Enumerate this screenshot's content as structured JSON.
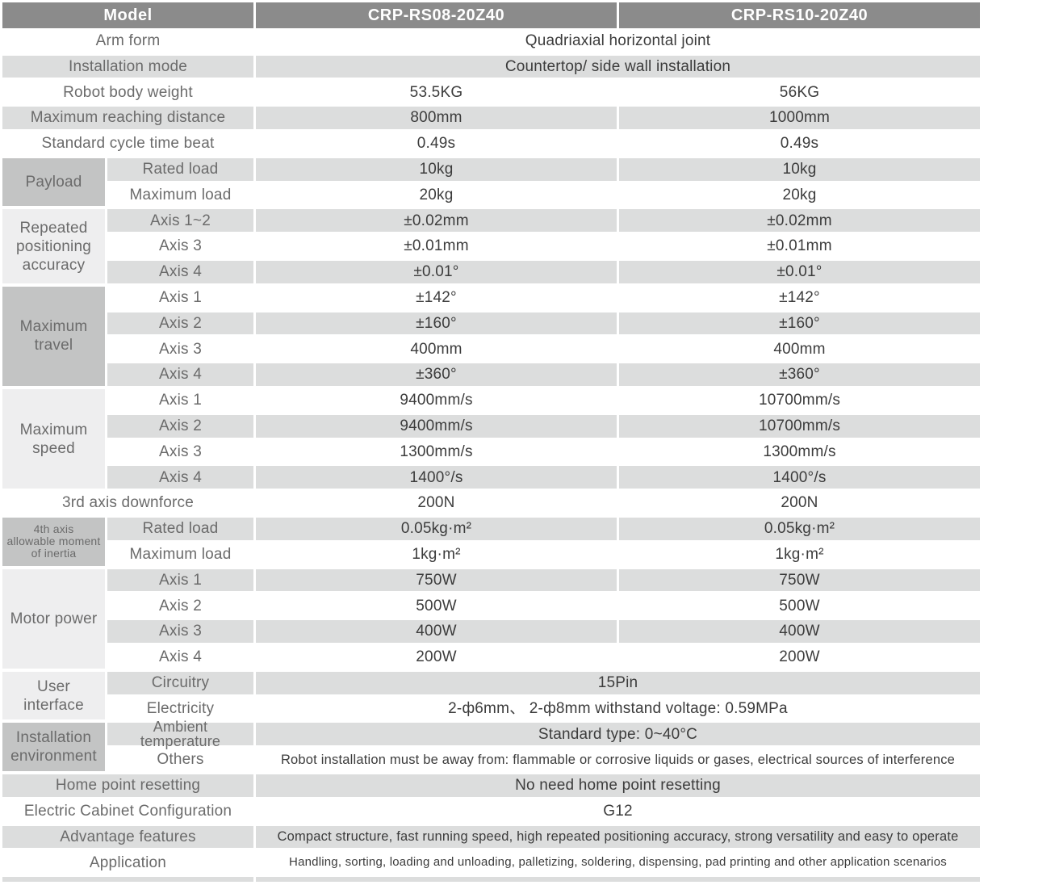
{
  "header": {
    "model_label": "Model",
    "models": [
      "CRP-RS08-20Z40",
      "CRP-RS10-20Z40"
    ]
  },
  "colors": {
    "header": "#8b8b8b",
    "stripe": "#dcdddd",
    "catdark": "#c3c4c4",
    "catlight": "#eeeeef",
    "label": "#6b6b6b",
    "value": "#3c3c3c"
  },
  "table": {
    "groups": [
      {
        "label": "Payload",
        "shade": "dark",
        "start": 5,
        "span": 2
      },
      {
        "label": "Repeated\npositioning\naccuracy",
        "shade": "light",
        "start": 7,
        "span": 3
      },
      {
        "label": "Maximum travel",
        "shade": "dark",
        "start": 10,
        "span": 4
      },
      {
        "label": "Maximum speed",
        "shade": "light",
        "start": 14,
        "span": 4
      },
      {
        "label": "4th axis\nallowable moment\nof inertia",
        "shade": "dark",
        "start": 19,
        "span": 2,
        "size": "sm"
      },
      {
        "label": "Motor power",
        "shade": "light",
        "start": 21,
        "span": 4
      },
      {
        "label": "User\ninterface",
        "shade": "light",
        "start": 25,
        "span": 2
      },
      {
        "label": "Installation\nenvironment",
        "shade": "dark",
        "start": 27,
        "span": 2
      }
    ],
    "rows": [
      {
        "label": "Arm form",
        "stripe": "w",
        "merged": "Quadriaxial horizontal joint"
      },
      {
        "label": "Installation mode",
        "stripe": "g",
        "merged": "Countertop/ side wall installation"
      },
      {
        "label": "Robot body weight",
        "stripe": "w",
        "values": [
          "53.5KG",
          "56KG"
        ]
      },
      {
        "label": "Maximum reaching distance",
        "stripe": "g",
        "values": [
          "800mm",
          "1000mm"
        ]
      },
      {
        "label": "Standard cycle time beat",
        "stripe": "w",
        "values": [
          "0.49s",
          "0.49s"
        ]
      },
      {
        "sub": "Rated load",
        "stripe": "g",
        "values": [
          "10kg",
          "10kg"
        ]
      },
      {
        "sub": "Maximum load",
        "stripe": "w",
        "values": [
          "20kg",
          "20kg"
        ]
      },
      {
        "sub": "Axis 1~2",
        "stripe": "g",
        "values": [
          "±0.02mm",
          "±0.02mm"
        ]
      },
      {
        "sub": "Axis 3",
        "stripe": "w",
        "values": [
          "±0.01mm",
          "±0.01mm"
        ]
      },
      {
        "sub": "Axis 4",
        "stripe": "g",
        "values": [
          "±0.01°",
          "±0.01°"
        ]
      },
      {
        "sub": "Axis 1",
        "stripe": "w",
        "values": [
          "±142°",
          "±142°"
        ]
      },
      {
        "sub": "Axis 2",
        "stripe": "g",
        "values": [
          "±160°",
          "±160°"
        ]
      },
      {
        "sub": "Axis 3",
        "stripe": "w",
        "values": [
          "400mm",
          "400mm"
        ]
      },
      {
        "sub": "Axis 4",
        "stripe": "g",
        "values": [
          "±360°",
          "±360°"
        ]
      },
      {
        "sub": "Axis 1",
        "stripe": "w",
        "values": [
          "9400mm/s",
          "10700mm/s"
        ]
      },
      {
        "sub": "Axis 2",
        "stripe": "g",
        "values": [
          "9400mm/s",
          "10700mm/s"
        ]
      },
      {
        "sub": "Axis 3",
        "stripe": "w",
        "values": [
          "1300mm/s",
          "1300mm/s"
        ]
      },
      {
        "sub": "Axis 4",
        "stripe": "g",
        "values": [
          "1400°/s",
          "1400°/s"
        ]
      },
      {
        "label": "3rd axis downforce",
        "stripe": "w",
        "values": [
          "200N",
          "200N"
        ]
      },
      {
        "sub": "Rated load",
        "stripe": "g",
        "values": [
          "0.05kg·m²",
          "0.05kg·m²"
        ]
      },
      {
        "sub": "Maximum load",
        "stripe": "w",
        "values": [
          "1kg·m²",
          "1kg·m²"
        ]
      },
      {
        "sub": "Axis 1",
        "stripe": "g",
        "values": [
          "750W",
          "750W"
        ]
      },
      {
        "sub": "Axis 2",
        "stripe": "w",
        "values": [
          "500W",
          "500W"
        ]
      },
      {
        "sub": "Axis 3",
        "stripe": "g",
        "values": [
          "400W",
          "400W"
        ]
      },
      {
        "sub": "Axis 4",
        "stripe": "w",
        "values": [
          "200W",
          "200W"
        ]
      },
      {
        "sub": "Circuitry",
        "stripe": "g",
        "merged": "15Pin"
      },
      {
        "sub": "Electricity",
        "stripe": "w",
        "merged": "2-ф6mm、 2-ф8mm withstand voltage: 0.59MPa"
      },
      {
        "sub": "Ambient\ntemperature",
        "sub_wrap": true,
        "stripe": "g",
        "merged": "Standard type: 0~40°C"
      },
      {
        "sub": "Others",
        "stripe": "w",
        "merged": "Robot installation must be away from: flammable or corrosive liquids or gases, electrical sources of interference",
        "size": "sm1"
      },
      {
        "label": "Home point resetting",
        "stripe": "g",
        "merged": "No need home point resetting"
      },
      {
        "label": "Electric Cabinet Configuration",
        "stripe": "w",
        "merged": "G12"
      },
      {
        "label": "Advantage features",
        "stripe": "g",
        "merged": "Compact structure, fast running speed, high repeated positioning accuracy, strong versatility and easy to operate",
        "size": "sm1"
      },
      {
        "label": "Application",
        "stripe": "w",
        "merged": "Handling, sorting, loading and unloading, palletizing, soldering, dispensing, pad printing and other application scenarios",
        "size": "sm2"
      }
    ]
  },
  "bottom_strip": {
    "visible": true
  }
}
